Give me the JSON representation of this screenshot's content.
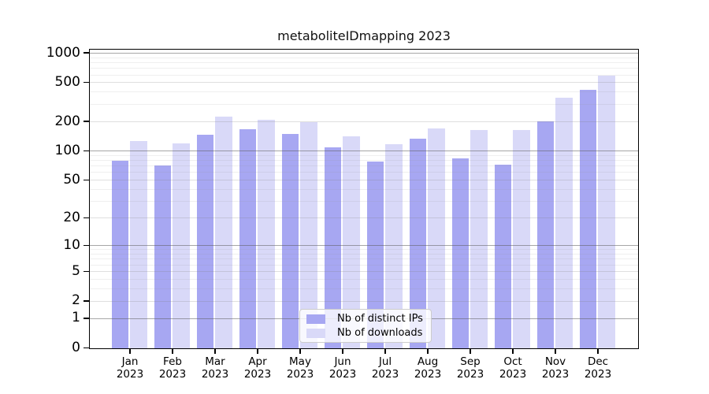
{
  "title": "metaboliteIDmapping 2023",
  "chart_data": {
    "type": "bar",
    "title": "metaboliteIDmapping 2023",
    "categories": [
      "Jan",
      "Feb",
      "Mar",
      "Apr",
      "May",
      "Jun",
      "Jul",
      "Aug",
      "Sep",
      "Oct",
      "Nov",
      "Dec"
    ],
    "category_year": "2023",
    "series": [
      {
        "name": "Nb of distinct IPs",
        "color": "#a7a7f2",
        "values": [
          80,
          72,
          147,
          170,
          152,
          110,
          79,
          134,
          84,
          73,
          204,
          430
        ]
      },
      {
        "name": "Nb of downloads",
        "color": "#d9d9f8",
        "values": [
          127,
          120,
          228,
          211,
          200,
          142,
          118,
          173,
          167,
          167,
          353,
          595
        ]
      }
    ],
    "yscale": "log10(1+x)",
    "yticks": [
      0,
      1,
      2,
      5,
      10,
      20,
      50,
      100,
      200,
      500,
      1000
    ],
    "ylim": [
      0,
      1076
    ],
    "grid": "on",
    "legend_position": "lower center inside"
  }
}
